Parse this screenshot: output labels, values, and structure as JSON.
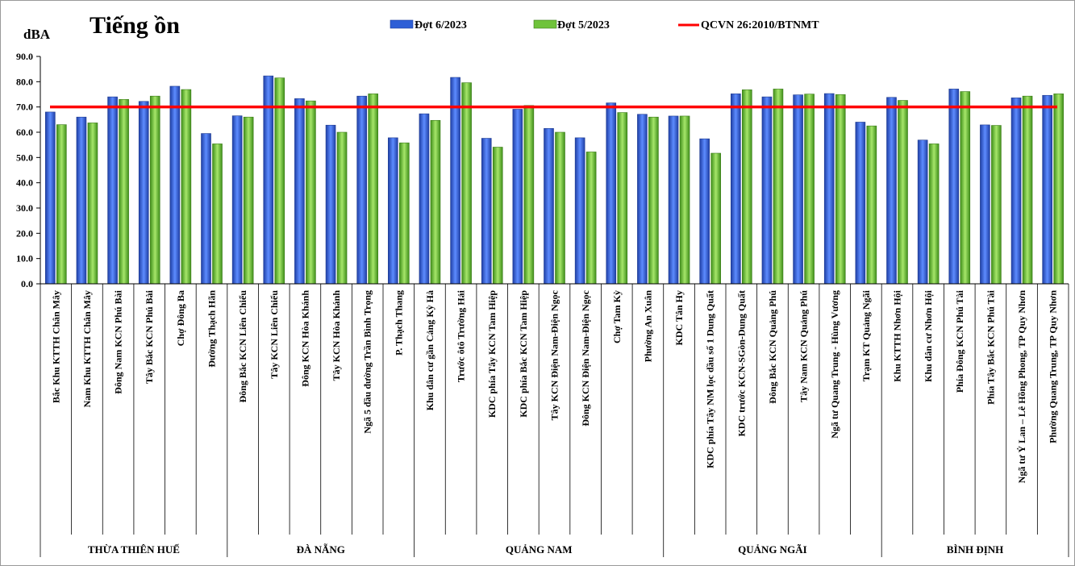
{
  "chart_data": {
    "type": "bar",
    "title": "Tiếng ồn",
    "ylabel": "dBA",
    "xlabel": "",
    "ylim": [
      0,
      90
    ],
    "yticks": [
      "0.0",
      "10.0",
      "20.0",
      "30.0",
      "40.0",
      "50.0",
      "60.0",
      "70.0",
      "80.0",
      "90.0"
    ],
    "grid": false,
    "legend_position": "top",
    "colors": {
      "series1": "#2e5fd6",
      "series2": "#6fc33a",
      "reference": "#ff0000"
    },
    "categories": [
      "Bắc Khu KTTH Chân Mây",
      "Nam Khu KTTH Chân Mây",
      "Đông Nam KCN Phú Bài",
      "Tây Bắc KCN Phú Bài",
      "Chợ Đông Ba",
      "Đường Thạch Hãn",
      "Đông Bắc KCN Liên Chiểu",
      "Tây KCN Liên Chiểu",
      "Đông KCN Hòa Khánh",
      "Tây KCN Hòa Khánh",
      "Ngã 5 đầu đường Trần Bình Trọng",
      "P. Thạch Thang",
      "Khu dân cư gần Cảng Kỳ Hà",
      "Trước ôtô Trường Hải",
      "KDC phía Tây KCN Tam Hiệp",
      "KDC phía Bắc KCN Tam Hiệp",
      "Tây KCN Điện Nam-Điện Ngọc",
      "Đông KCN Điện Nam-Điện Ngọc",
      "Chợ Tam Kỳ",
      "Phường An Xuân",
      "KDC Tân Hy",
      "KDC phía Tây NM lọc dầu số 1 Dung Quất",
      "KDC trước KCN-SGòn-Dung Quất",
      "Đông Bắc KCN Quảng Phú",
      "Tây Nam KCN Quảng Phú",
      "Ngã tư Quang Trung - Hùng Vương",
      "Trạm KT Quảng Ngãi",
      "Khu KTTH Nhơn Hội",
      "Khu dân cư Nhơn Hội",
      "Phía Đông KCN Phú Tài",
      "Phía Tây Bắc KCN Phú Tài",
      "Ngã tư Ỷ Lan – Lê Hồng Phong, TP Quy Nhơn",
      "Phường Quang Trung, TP Quy Nhơn"
    ],
    "groups": [
      {
        "name": "THỪA THIÊN HUẾ",
        "count": 6
      },
      {
        "name": "ĐÀ NẴNG",
        "count": 6
      },
      {
        "name": "QUẢNG NAM",
        "count": 8
      },
      {
        "name": "QUẢNG NGÃI",
        "count": 7
      },
      {
        "name": "BÌNH ĐỊNH",
        "count": 6
      }
    ],
    "series": [
      {
        "name": "Đợt 6/2023",
        "values": [
          68.0,
          66.0,
          74.0,
          72.2,
          78.2,
          59.5,
          66.5,
          82.3,
          73.3,
          62.8,
          74.3,
          57.8,
          67.3,
          81.7,
          57.6,
          69.1,
          61.5,
          57.8,
          71.6,
          67.1,
          66.4,
          57.4,
          75.2,
          74.0,
          74.8,
          75.3,
          64.0,
          73.8,
          56.9,
          77.1,
          62.9,
          73.6,
          74.6
        ]
      },
      {
        "name": "Đợt 5/2023",
        "values": [
          63.0,
          63.7,
          73.0,
          74.3,
          76.9,
          55.4,
          66.0,
          81.5,
          72.4,
          60.0,
          75.2,
          55.8,
          64.7,
          79.6,
          54.1,
          70.6,
          60.0,
          52.2,
          67.8,
          66.0,
          66.4,
          51.7,
          76.8,
          77.1,
          75.1,
          74.9,
          62.5,
          72.6,
          55.4,
          76.1,
          62.7,
          74.3,
          75.2
        ]
      }
    ],
    "reference_line": {
      "name": "QCVN 26:2010/BTNMT",
      "value": 70
    }
  }
}
